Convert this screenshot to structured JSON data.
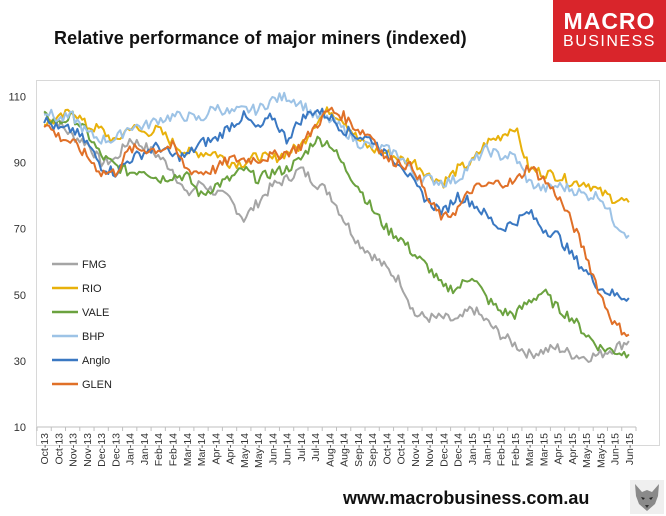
{
  "header": {
    "title": "Relative performance of major miners (indexed)",
    "logo_line1": "MACRO",
    "logo_line2": "BUSINESS"
  },
  "footer": {
    "url": "www.macrobusiness.com.au",
    "logo_icon": "wolf-head-icon"
  },
  "colors": {
    "FMG": "#a5a5a5",
    "RIO": "#e8b10b",
    "VALE": "#6ba23f",
    "BHP": "#9dc3e6",
    "Anglo": "#3a78c2",
    "GLEN": "#e07028",
    "logo_bg": "#d9252b"
  },
  "chart_data": {
    "type": "line",
    "title": "Relative performance of major miners (indexed)",
    "xlabel": "",
    "ylabel": "",
    "ylim": [
      10,
      115
    ],
    "yticks": [
      10,
      30,
      50,
      70,
      90,
      110
    ],
    "grid": false,
    "legend": "left-middle",
    "categories": [
      "Oct-13",
      "Oct-13",
      "Nov-13",
      "Nov-13",
      "Dec-13",
      "Dec-13",
      "Jan-14",
      "Jan-14",
      "Feb-14",
      "Feb-14",
      "Mar-14",
      "Mar-14",
      "Apr-14",
      "Apr-14",
      "May-14",
      "May-14",
      "Jun-14",
      "Jun-14",
      "Jul-14",
      "Jul-14",
      "Aug-14",
      "Aug-14",
      "Sep-14",
      "Sep-14",
      "Oct-14",
      "Oct-14",
      "Nov-14",
      "Nov-14",
      "Dec-14",
      "Dec-14",
      "Jan-15",
      "Jan-15",
      "Feb-15",
      "Feb-15",
      "Mar-15",
      "Mar-15",
      "Apr-15",
      "Apr-15",
      "May-15",
      "May-15",
      "Jun-15",
      "Jun-15"
    ],
    "series": [
      {
        "name": "FMG",
        "values": [
          105,
          102,
          98,
          96,
          90,
          91,
          97,
          95,
          92,
          88,
          80,
          84,
          81,
          79,
          73,
          78,
          83,
          85,
          88,
          84,
          81,
          73,
          66,
          62,
          58,
          54,
          44,
          43,
          43,
          42,
          46,
          42,
          38,
          35,
          32,
          33,
          34,
          32,
          31,
          32,
          34,
          36
        ]
      },
      {
        "name": "RIO",
        "values": [
          102,
          103,
          106,
          101,
          100,
          96,
          101,
          99,
          100,
          96,
          93,
          93,
          93,
          90,
          90,
          92,
          91,
          93,
          95,
          102,
          106,
          103,
          97,
          94,
          93,
          91,
          90,
          86,
          84,
          88,
          90,
          96,
          98,
          101,
          88,
          87,
          86,
          84,
          84,
          81,
          79,
          78
        ]
      },
      {
        "name": "VALE",
        "values": [
          104,
          102,
          104,
          99,
          92,
          89,
          87,
          88,
          85,
          86,
          86,
          80,
          83,
          85,
          88,
          85,
          87,
          88,
          91,
          97,
          96,
          89,
          83,
          76,
          70,
          67,
          62,
          58,
          52,
          52,
          56,
          49,
          45,
          44,
          48,
          51,
          46,
          43,
          38,
          34,
          33,
          32
        ]
      },
      {
        "name": "BHP",
        "values": [
          106,
          103,
          104,
          99,
          97,
          97,
          101,
          101,
          103,
          104,
          104,
          103,
          107,
          105,
          106,
          106,
          109,
          110,
          108,
          104,
          103,
          100,
          96,
          95,
          94,
          92,
          86,
          85,
          84,
          85,
          90,
          94,
          92,
          92,
          84,
          82,
          83,
          82,
          80,
          80,
          72,
          68
        ]
      },
      {
        "name": "Anglo",
        "values": [
          103,
          100,
          100,
          96,
          89,
          87,
          91,
          93,
          95,
          92,
          92,
          96,
          97,
          101,
          104,
          100,
          104,
          97,
          103,
          106,
          104,
          100,
          98,
          97,
          92,
          90,
          83,
          78,
          75,
          80,
          78,
          74,
          70,
          72,
          75,
          70,
          68,
          62,
          57,
          52,
          50,
          49
        ]
      },
      {
        "name": "GLEN",
        "values": [
          102,
          98,
          96,
          92,
          87,
          87,
          94,
          94,
          94,
          95,
          88,
          87,
          88,
          91,
          91,
          91,
          92,
          93,
          95,
          101,
          106,
          104,
          100,
          98,
          91,
          90,
          88,
          78,
          73,
          76,
          82,
          83,
          84,
          84,
          89,
          85,
          80,
          72,
          62,
          50,
          41,
          38
        ]
      }
    ]
  }
}
